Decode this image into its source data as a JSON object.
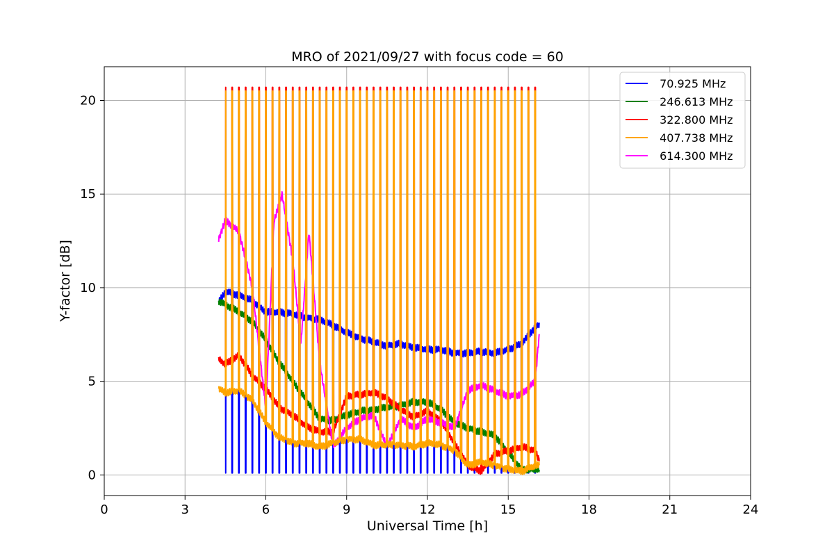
{
  "chart_data": {
    "type": "line",
    "title": "MRO of 2021/09/27 with focus code = 60",
    "xlabel": "Universal Time [h]",
    "ylabel": "Y-factor [dB]",
    "xlim": [
      0,
      24
    ],
    "ylim": [
      -1.1,
      21.8
    ],
    "xticks": [
      0,
      3,
      6,
      9,
      12,
      15,
      18,
      21,
      24
    ],
    "yticks": [
      0,
      5,
      10,
      15,
      20
    ],
    "grid": true,
    "legend_position": "top-right",
    "pulses": {
      "start": 4.5,
      "period": 0.25,
      "count": 47,
      "calibration_levels": {
        "70.925 MHz": 0.1,
        "322.800 MHz": 20.7,
        "407.738 MHz": 20.5,
        "614.300 MHz": 10.8
      }
    },
    "series": [
      {
        "name": " 70.925 MHz",
        "color": "#0000ff",
        "x": [
          4.25,
          4.5,
          5.0,
          5.5,
          6.0,
          6.5,
          7.0,
          7.5,
          8.0,
          8.5,
          9.0,
          9.5,
          10.0,
          10.5,
          11.0,
          11.5,
          12.0,
          12.5,
          13.0,
          13.5,
          14.0,
          14.5,
          15.0,
          15.5,
          16.0,
          16.15
        ],
        "y": [
          9.2,
          9.8,
          9.6,
          9.3,
          8.7,
          8.7,
          8.6,
          8.4,
          8.3,
          8.0,
          7.6,
          7.3,
          7.1,
          6.9,
          7.0,
          6.8,
          6.7,
          6.7,
          6.5,
          6.5,
          6.6,
          6.5,
          6.7,
          7.0,
          7.9,
          8.0
        ]
      },
      {
        "name": " 246.613 MHz",
        "color": "#008000",
        "x": [
          4.25,
          4.5,
          5.0,
          5.5,
          6.0,
          6.5,
          7.0,
          7.5,
          8.0,
          8.5,
          9.0,
          9.5,
          10.0,
          10.5,
          11.0,
          11.5,
          12.0,
          12.5,
          13.0,
          13.5,
          14.0,
          14.5,
          15.0,
          15.5,
          16.0,
          16.15
        ],
        "y": [
          9.3,
          9.1,
          8.7,
          8.2,
          7.2,
          6.0,
          5.0,
          4.0,
          3.0,
          2.9,
          3.2,
          3.4,
          3.5,
          3.6,
          3.7,
          3.9,
          3.9,
          3.5,
          2.8,
          2.5,
          2.3,
          2.1,
          1.2,
          0.3,
          0.3,
          0.3
        ]
      },
      {
        "name": " 322.800 MHz",
        "color": "#ff0000",
        "x": [
          4.25,
          4.5,
          5.0,
          5.5,
          6.0,
          6.5,
          7.0,
          7.5,
          8.0,
          8.5,
          9.0,
          9.5,
          10.0,
          10.5,
          11.0,
          11.5,
          12.0,
          12.5,
          13.0,
          13.5,
          14.0,
          14.5,
          15.0,
          15.5,
          16.0,
          16.15
        ],
        "y": [
          6.2,
          5.9,
          6.4,
          5.3,
          4.6,
          3.6,
          3.2,
          2.6,
          2.3,
          2.3,
          4.2,
          4.3,
          4.4,
          4.1,
          3.5,
          3.1,
          3.4,
          2.9,
          1.7,
          0.5,
          0.2,
          1.1,
          1.3,
          1.5,
          1.3,
          0.8
        ]
      },
      {
        "name": " 407.738 MHz",
        "color": "#ffa500",
        "x": [
          4.25,
          4.5,
          5.0,
          5.5,
          6.0,
          6.5,
          7.0,
          7.5,
          8.0,
          8.5,
          9.0,
          9.5,
          10.0,
          10.5,
          11.0,
          11.5,
          12.0,
          12.5,
          13.0,
          13.5,
          14.0,
          14.5,
          15.0,
          15.5,
          16.0,
          16.15
        ],
        "y": [
          4.6,
          4.4,
          4.5,
          4.0,
          2.8,
          2.0,
          1.7,
          1.7,
          1.5,
          1.7,
          1.9,
          1.9,
          1.6,
          1.6,
          1.6,
          1.5,
          1.7,
          1.6,
          1.3,
          0.5,
          0.7,
          0.5,
          0.3,
          0.2,
          0.5,
          0.5
        ]
      },
      {
        "name": " 614.300 MHz",
        "color": "#ff00ff",
        "x": [
          4.25,
          4.5,
          5.0,
          5.5,
          6.0,
          6.3,
          6.6,
          7.0,
          7.3,
          7.6,
          8.0,
          8.5,
          9.0,
          9.5,
          10.0,
          10.5,
          11.0,
          11.5,
          12.0,
          12.5,
          13.0,
          13.5,
          14.0,
          14.5,
          15.0,
          15.5,
          16.0,
          16.15
        ],
        "y": [
          12.6,
          13.6,
          13.0,
          10.0,
          3.5,
          13.5,
          15.0,
          11.5,
          7.0,
          13.0,
          6.0,
          1.5,
          2.5,
          3.0,
          3.2,
          1.5,
          3.0,
          2.5,
          3.0,
          2.8,
          2.5,
          4.5,
          4.8,
          4.5,
          4.2,
          4.3,
          5.0,
          7.5
        ]
      }
    ]
  }
}
